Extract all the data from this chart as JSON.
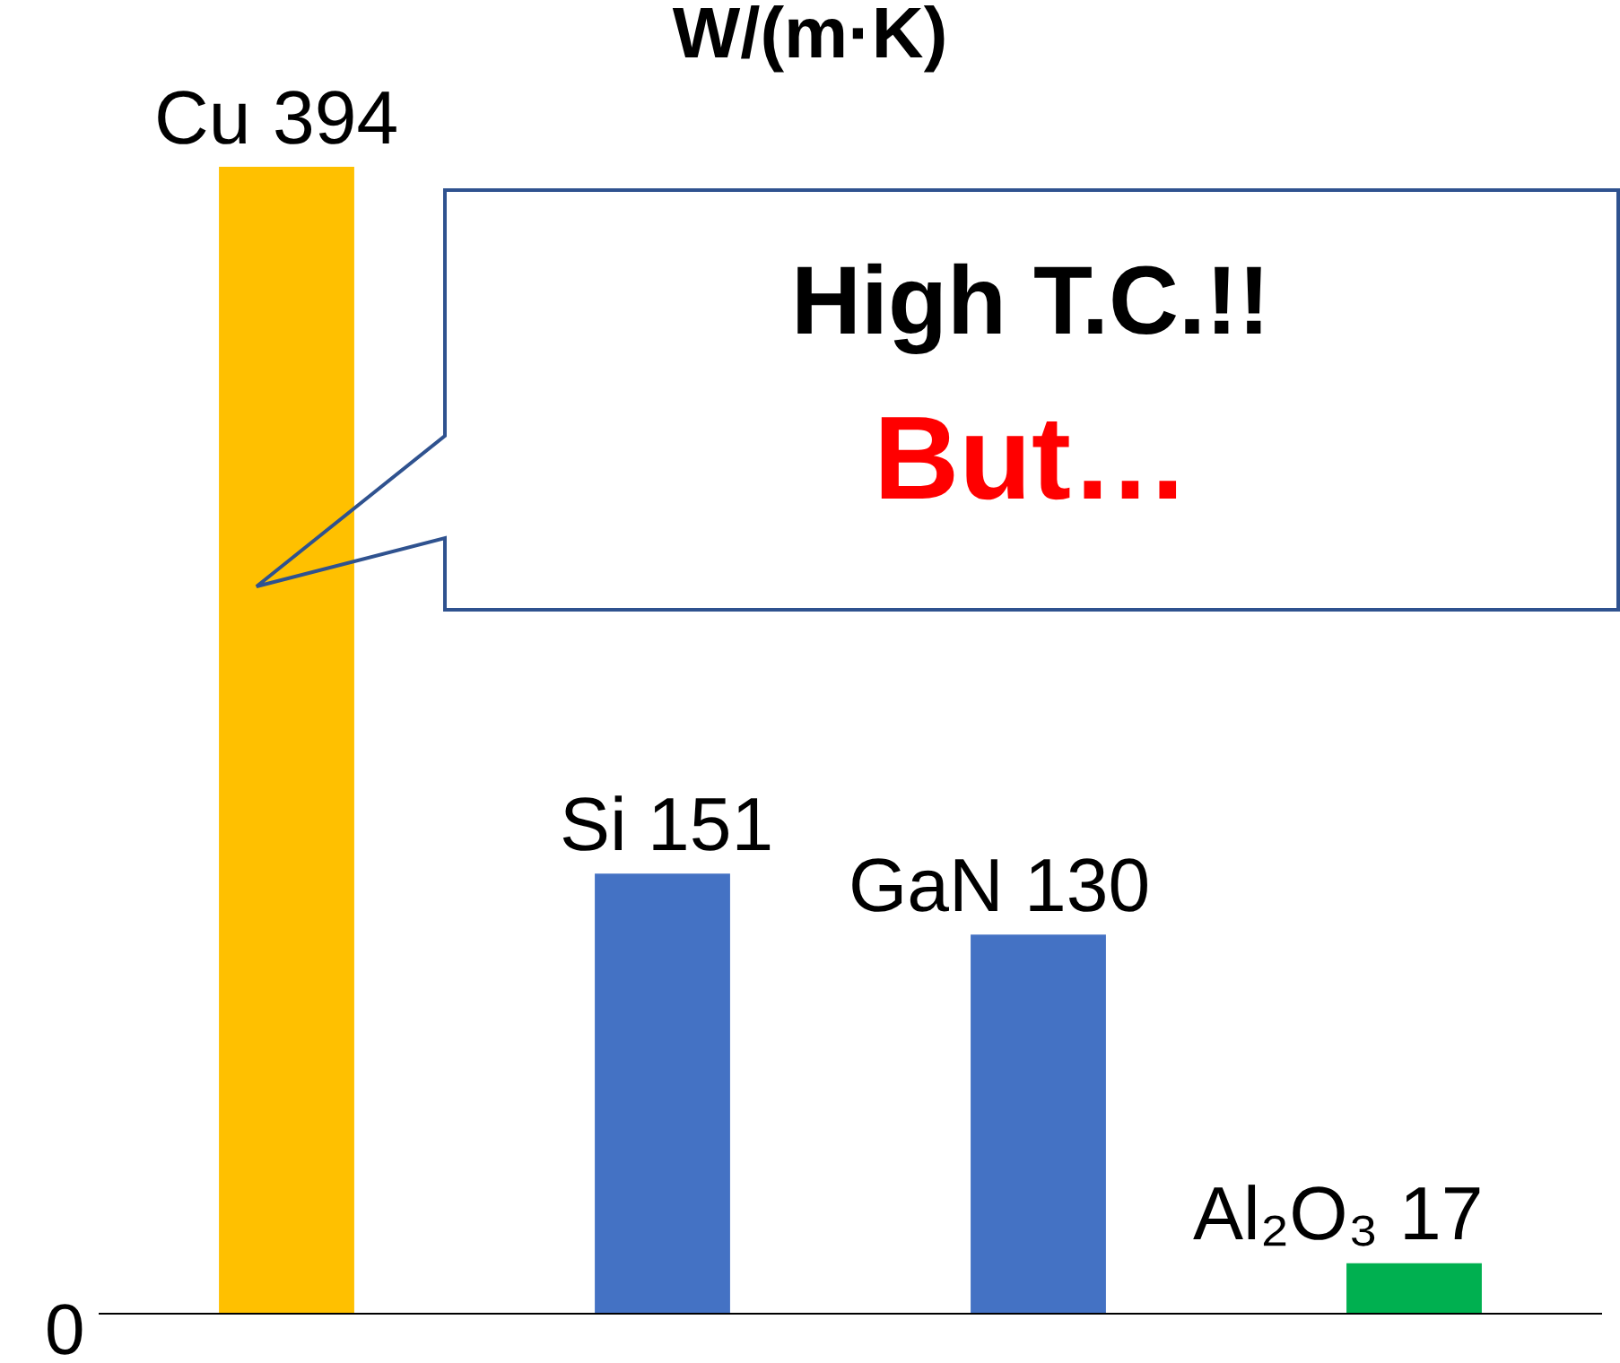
{
  "chart_data": {
    "type": "bar",
    "title": "W/(m·K)",
    "categories": [
      "Cu",
      "Si",
      "GaN",
      "Al₂O₃"
    ],
    "values": [
      394,
      151,
      130,
      17
    ],
    "colors": [
      "#ffc000",
      "#4472c4",
      "#4472c4",
      "#00b050"
    ],
    "data_labels": true,
    "grid": false,
    "annotations": [
      "High T.C.!!",
      "But…",
      "0"
    ]
  }
}
